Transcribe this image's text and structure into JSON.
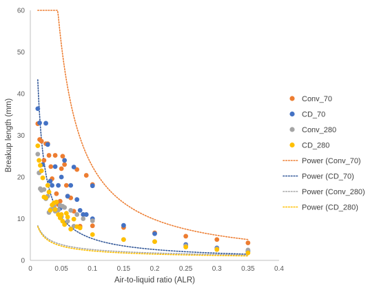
{
  "chart_data": {
    "type": "scatter",
    "xlabel": "Air-to-liquid ratio (ALR)",
    "ylabel": "Breakup length (mm)",
    "xlim": [
      0,
      0.4
    ],
    "ylim": [
      0,
      60
    ],
    "x_ticks": [
      "0",
      "0.05",
      "0.1",
      "0.15",
      "0.2",
      "0.25",
      "0.3",
      "0.35",
      "0.4"
    ],
    "y_ticks": [
      "0",
      "10",
      "20",
      "30",
      "40",
      "50",
      "60"
    ],
    "grid": false,
    "legend_position": "right",
    "series": [
      {
        "name": "Conv_70",
        "color": "#ED7D31",
        "points": [
          [
            0.012,
            32.8
          ],
          [
            0.015,
            29
          ],
          [
            0.018,
            28.6
          ],
          [
            0.022,
            24
          ],
          [
            0.025,
            28
          ],
          [
            0.028,
            28
          ],
          [
            0.03,
            25.2
          ],
          [
            0.033,
            22.5
          ],
          [
            0.035,
            19.6
          ],
          [
            0.04,
            25.2
          ],
          [
            0.042,
            16
          ],
          [
            0.045,
            13.4
          ],
          [
            0.048,
            14.2
          ],
          [
            0.05,
            22
          ],
          [
            0.052,
            25
          ],
          [
            0.055,
            23
          ],
          [
            0.058,
            18
          ],
          [
            0.06,
            15.4
          ],
          [
            0.065,
            15
          ],
          [
            0.07,
            11.8
          ],
          [
            0.075,
            21.8
          ],
          [
            0.08,
            8.2
          ],
          [
            0.085,
            11
          ],
          [
            0.09,
            20.4
          ],
          [
            0.1,
            18.2
          ],
          [
            0.1,
            8.3
          ],
          [
            0.15,
            7.9
          ],
          [
            0.2,
            6.6
          ],
          [
            0.25,
            5.8
          ],
          [
            0.3,
            5
          ],
          [
            0.35,
            4.2
          ]
        ]
      },
      {
        "name": "CD_70",
        "color": "#4472C4",
        "points": [
          [
            0.012,
            36.4
          ],
          [
            0.015,
            33
          ],
          [
            0.02,
            23
          ],
          [
            0.025,
            32.9
          ],
          [
            0.028,
            27.8
          ],
          [
            0.032,
            19
          ],
          [
            0.035,
            18
          ],
          [
            0.04,
            22.5
          ],
          [
            0.045,
            18
          ],
          [
            0.048,
            12.5
          ],
          [
            0.05,
            20
          ],
          [
            0.055,
            24
          ],
          [
            0.06,
            15.4
          ],
          [
            0.065,
            18
          ],
          [
            0.07,
            22.4
          ],
          [
            0.075,
            14.6
          ],
          [
            0.08,
            12
          ],
          [
            0.085,
            11
          ],
          [
            0.09,
            11
          ],
          [
            0.1,
            17.9
          ],
          [
            0.1,
            10
          ],
          [
            0.15,
            8.4
          ],
          [
            0.2,
            6.4
          ],
          [
            0.25,
            3.8
          ],
          [
            0.3,
            3
          ],
          [
            0.35,
            2.2
          ]
        ]
      },
      {
        "name": "Conv_280",
        "color": "#A5A5A5",
        "points": [
          [
            0.012,
            25.5
          ],
          [
            0.014,
            21
          ],
          [
            0.016,
            17.2
          ],
          [
            0.018,
            16.8
          ],
          [
            0.022,
            17
          ],
          [
            0.025,
            14.8
          ],
          [
            0.028,
            15.4
          ],
          [
            0.03,
            11.5
          ],
          [
            0.033,
            12.2
          ],
          [
            0.038,
            13
          ],
          [
            0.04,
            11.8
          ],
          [
            0.045,
            12.1
          ],
          [
            0.048,
            13.2
          ],
          [
            0.05,
            10.5
          ],
          [
            0.052,
            13
          ],
          [
            0.055,
            12.7
          ],
          [
            0.06,
            9.4
          ],
          [
            0.065,
            12
          ],
          [
            0.07,
            8.2
          ],
          [
            0.075,
            11
          ],
          [
            0.085,
            10
          ],
          [
            0.1,
            9.5
          ],
          [
            0.15,
            5
          ],
          [
            0.2,
            4.5
          ],
          [
            0.25,
            3.5
          ],
          [
            0.3,
            2.8
          ],
          [
            0.35,
            2.5
          ]
        ]
      },
      {
        "name": "CD_280",
        "color": "#FFC000",
        "points": [
          [
            0.012,
            27.5
          ],
          [
            0.014,
            24
          ],
          [
            0.016,
            22.8
          ],
          [
            0.018,
            21.5
          ],
          [
            0.02,
            19.8
          ],
          [
            0.022,
            15.2
          ],
          [
            0.025,
            15
          ],
          [
            0.028,
            18
          ],
          [
            0.03,
            16.4
          ],
          [
            0.032,
            12
          ],
          [
            0.035,
            13.3
          ],
          [
            0.038,
            13.8
          ],
          [
            0.04,
            12.2
          ],
          [
            0.042,
            14
          ],
          [
            0.045,
            11
          ],
          [
            0.048,
            10.2
          ],
          [
            0.05,
            11
          ],
          [
            0.052,
            9.4
          ],
          [
            0.055,
            8.6
          ],
          [
            0.058,
            11.3
          ],
          [
            0.06,
            10.4
          ],
          [
            0.065,
            7.5
          ],
          [
            0.07,
            9.9
          ],
          [
            0.075,
            8.1
          ],
          [
            0.08,
            7.8
          ],
          [
            0.1,
            6.2
          ],
          [
            0.15,
            5
          ],
          [
            0.2,
            4.5
          ],
          [
            0.25,
            3.2
          ],
          [
            0.3,
            2.6
          ],
          [
            0.35,
            1.8
          ]
        ]
      }
    ],
    "trendlines": [
      {
        "name": "Power (Conv_70)",
        "color": "#ED7D31",
        "type": "power",
        "a": 1.42,
        "b": -1.2,
        "x_range": [
          0.012,
          0.35
        ]
      },
      {
        "name": "Power (CD_70)",
        "color": "#2F5597",
        "type": "power",
        "a": 0.52,
        "b": -1.0,
        "x_range": [
          0.012,
          0.35
        ]
      },
      {
        "name": "Power (Conv_280)",
        "color": "#A5A5A5",
        "type": "power",
        "a": 0.73,
        "b": -0.55,
        "x_range": [
          0.012,
          0.35
        ]
      },
      {
        "name": "Power (CD_280)",
        "color": "#FFC000",
        "type": "power",
        "a": 0.57,
        "b": -0.6,
        "x_range": [
          0.012,
          0.35
        ]
      }
    ]
  }
}
